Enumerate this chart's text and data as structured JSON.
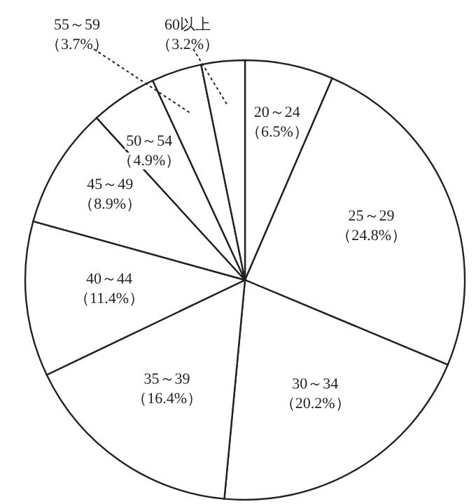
{
  "chart_data": {
    "type": "pie",
    "categories": [
      "20～24",
      "25～29",
      "30～34",
      "35～39",
      "40～44",
      "45～49",
      "50～54",
      "55～59",
      "60以上"
    ],
    "values": [
      6.5,
      24.8,
      20.2,
      16.4,
      11.4,
      8.9,
      4.9,
      3.7,
      3.2
    ],
    "value_labels": [
      "（6.5%）",
      "（24.8%）",
      "（20.2%）",
      "（16.4%）",
      "（11.4%）",
      "（8.9%）",
      "（4.9%）",
      "（3.7%）",
      "（3.2%）"
    ],
    "colors": [
      "#ffffff",
      "#ffffff",
      "#ffffff",
      "#ffffff",
      "#ffffff",
      "#ffffff",
      "#ffffff",
      "#ffffff",
      "#ffffff"
    ]
  }
}
